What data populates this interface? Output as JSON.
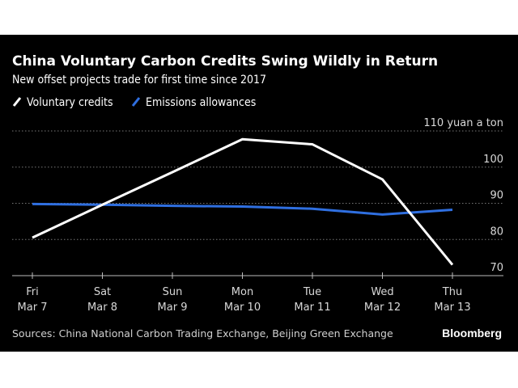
{
  "chart_data": {
    "type": "line",
    "title": "China Voluntary Carbon Credits Swing Wildly in Return",
    "subtitle": "New offset projects trade for first time since 2017",
    "categories": [
      [
        "Fri",
        "Mar 7"
      ],
      [
        "Sat",
        "Mar 8"
      ],
      [
        "Sun",
        "Mar 9"
      ],
      [
        "Mon",
        "Mar 10"
      ],
      [
        "Tue",
        "Mar 11"
      ],
      [
        "Wed",
        "Mar 12"
      ],
      [
        "Thu",
        "Mar 13"
      ]
    ],
    "series": [
      {
        "name": "Voluntary credits",
        "color": "#ffffff",
        "values": [
          80.5,
          89.6,
          98.6,
          107.7,
          106.3,
          96.6,
          73.0
        ]
      },
      {
        "name": "Emissions allowances",
        "color": "#2f6fe0",
        "values": [
          89.8,
          89.6,
          89.3,
          89.1,
          88.5,
          86.9,
          88.2
        ]
      }
    ],
    "ylabel": "110 yuan a ton",
    "yticks": [
      "70",
      "80",
      "90",
      "100",
      "110 yuan a ton"
    ],
    "ytick_values": [
      70,
      80,
      90,
      100,
      110
    ],
    "ylim": [
      70,
      110
    ],
    "grid": true,
    "legend_position": "top-left",
    "source": "Sources: China National Carbon Trading Exchange, Beijing Green Exchange",
    "brand": "Bloomberg"
  }
}
